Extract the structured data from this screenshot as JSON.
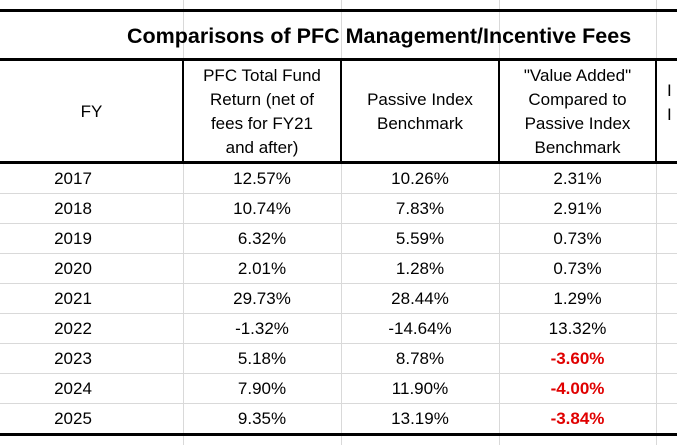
{
  "title": "Comparisons of PFC Management/Incentive Fees",
  "headers": {
    "fy": "FY",
    "pfc": "PFC Total Fund\nReturn (net of\nfees for FY21\nand after)",
    "passive": "Passive Index\nBenchmark",
    "value_added": "\"Value Added\"\nCompared to\nPassive Index\nBenchmark",
    "cut_col": "I\nI"
  },
  "rows": [
    {
      "fy": "2017",
      "pfc": "12.57%",
      "passive": "10.26%",
      "value_added": "2.31%"
    },
    {
      "fy": "2018",
      "pfc": "10.74%",
      "passive": "7.83%",
      "value_added": "2.91%"
    },
    {
      "fy": "2019",
      "pfc": "6.32%",
      "passive": "5.59%",
      "value_added": "0.73%"
    },
    {
      "fy": "2020",
      "pfc": "2.01%",
      "passive": "1.28%",
      "value_added": "0.73%"
    },
    {
      "fy": "2021",
      "pfc": "29.73%",
      "passive": "28.44%",
      "value_added": "1.29%"
    },
    {
      "fy": "2022",
      "pfc": "-1.32%",
      "passive": "-14.64%",
      "value_added": "13.32%"
    },
    {
      "fy": "2023",
      "pfc": "5.18%",
      "passive": "8.78%",
      "value_added": "-3.60%"
    },
    {
      "fy": "2024",
      "pfc": "7.90%",
      "passive": "11.90%",
      "value_added": "-4.00%"
    },
    {
      "fy": "2025",
      "pfc": "9.35%",
      "passive": "13.19%",
      "value_added": "-3.84%"
    }
  ],
  "colors": {
    "negative": "#e00000",
    "grid": "#d9d9d9",
    "border": "#000000"
  }
}
